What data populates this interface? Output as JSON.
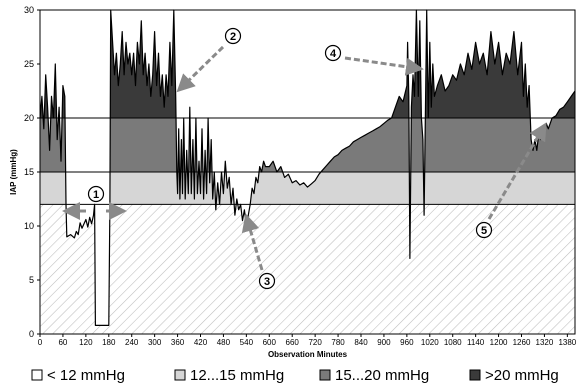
{
  "chart_data": {
    "type": "area",
    "title": "",
    "xlabel": "Observation Minutes",
    "ylabel": "IAP  (mmHg)",
    "xlim": [
      0,
      1400
    ],
    "ylim": [
      0,
      30
    ],
    "x_ticks": [
      "0",
      "60",
      "120",
      "180",
      "240",
      "300",
      "360",
      "420",
      "480",
      "540",
      "600",
      "660",
      "720",
      "780",
      "840",
      "900",
      "960",
      "1020",
      "1080",
      "1140",
      "1200",
      "1260",
      "1320",
      "1380"
    ],
    "y_ticks": [
      "0",
      "5",
      "10",
      "15",
      "20",
      "25",
      "30"
    ],
    "thresholds": [
      12,
      15,
      20
    ],
    "legend_position": "bottom",
    "legend": [
      {
        "label": "< 12 mmHg",
        "color": "#ffffff"
      },
      {
        "label": "12...15 mmHg",
        "color": "#d6d6d6"
      },
      {
        "label": "15...20 mmHg",
        "color": "#7a7a7a"
      },
      {
        "label": ">20 mmHg",
        "color": "#3a3a3a"
      }
    ],
    "band_colors": {
      "below_12": "#ffffff",
      "b12_15": "#d6d6d6",
      "b15_20": "#7a7a7a",
      "above_20": "#3a3a3a"
    },
    "series": [
      {
        "values_description_free": true,
        "points": [
          [
            0,
            20
          ],
          [
            5,
            22
          ],
          [
            10,
            19
          ],
          [
            15,
            24
          ],
          [
            20,
            21
          ],
          [
            25,
            17
          ],
          [
            30,
            22
          ],
          [
            35,
            20
          ],
          [
            40,
            25
          ],
          [
            45,
            18
          ],
          [
            50,
            21
          ],
          [
            55,
            16
          ],
          [
            60,
            23
          ],
          [
            65,
            22
          ],
          [
            68,
            12
          ],
          [
            70,
            9
          ],
          [
            80,
            9.2
          ],
          [
            90,
            8.9
          ],
          [
            95,
            9.5
          ],
          [
            100,
            9.2
          ],
          [
            105,
            10.3
          ],
          [
            110,
            9.8
          ],
          [
            120,
            10.6
          ],
          [
            125,
            9.9
          ],
          [
            130,
            10.8
          ],
          [
            135,
            10.2
          ],
          [
            140,
            11
          ],
          [
            143,
            12
          ],
          [
            145,
            0.8
          ],
          [
            180,
            0.8
          ],
          [
            183,
            12
          ],
          [
            185,
            30
          ],
          [
            190,
            27
          ],
          [
            195,
            24
          ],
          [
            200,
            26
          ],
          [
            205,
            23
          ],
          [
            210,
            25
          ],
          [
            215,
            28
          ],
          [
            220,
            24
          ],
          [
            225,
            27
          ],
          [
            230,
            25
          ],
          [
            235,
            26
          ],
          [
            240,
            24
          ],
          [
            245,
            26
          ],
          [
            250,
            23
          ],
          [
            255,
            27
          ],
          [
            260,
            25
          ],
          [
            265,
            29
          ],
          [
            270,
            24
          ],
          [
            275,
            26
          ],
          [
            280,
            23
          ],
          [
            285,
            25
          ],
          [
            290,
            22
          ],
          [
            295,
            24
          ],
          [
            300,
            28
          ],
          [
            305,
            23
          ],
          [
            310,
            26
          ],
          [
            315,
            22
          ],
          [
            320,
            24
          ],
          [
            325,
            21
          ],
          [
            330,
            24
          ],
          [
            335,
            22
          ],
          [
            340,
            27
          ],
          [
            345,
            23
          ],
          [
            350,
            30
          ],
          [
            355,
            22
          ],
          [
            358,
            15
          ],
          [
            360,
            13
          ],
          [
            363,
            19
          ],
          [
            366,
            12.5
          ],
          [
            370,
            18
          ],
          [
            373,
            13
          ],
          [
            376,
            20
          ],
          [
            380,
            12.5
          ],
          [
            384,
            17
          ],
          [
            388,
            13
          ],
          [
            392,
            21
          ],
          [
            396,
            13
          ],
          [
            400,
            18
          ],
          [
            404,
            12.5
          ],
          [
            408,
            20
          ],
          [
            412,
            13
          ],
          [
            416,
            16
          ],
          [
            420,
            13
          ],
          [
            424,
            19
          ],
          [
            428,
            12.5
          ],
          [
            432,
            17
          ],
          [
            436,
            13
          ],
          [
            440,
            20
          ],
          [
            444,
            14
          ],
          [
            448,
            18
          ],
          [
            452,
            12.5
          ],
          [
            456,
            15
          ],
          [
            460,
            11.5
          ],
          [
            465,
            14
          ],
          [
            470,
            12
          ],
          [
            475,
            15
          ],
          [
            480,
            13
          ],
          [
            485,
            16
          ],
          [
            490,
            13.5
          ],
          [
            495,
            14.5
          ],
          [
            500,
            12
          ],
          [
            505,
            13.5
          ],
          [
            510,
            11
          ],
          [
            515,
            12.5
          ],
          [
            520,
            11.5
          ],
          [
            525,
            12
          ],
          [
            530,
            10.5
          ],
          [
            535,
            11.5
          ],
          [
            540,
            10
          ],
          [
            545,
            11
          ],
          [
            550,
            12
          ],
          [
            555,
            13.5
          ],
          [
            560,
            13
          ],
          [
            565,
            14.5
          ],
          [
            570,
            14
          ],
          [
            575,
            15.5
          ],
          [
            580,
            15
          ],
          [
            585,
            16
          ],
          [
            590,
            15.5
          ],
          [
            600,
            15.5
          ],
          [
            610,
            16
          ],
          [
            620,
            15
          ],
          [
            630,
            15.5
          ],
          [
            640,
            14.5
          ],
          [
            650,
            14.8
          ],
          [
            660,
            14
          ],
          [
            670,
            14.2
          ],
          [
            680,
            13.8
          ],
          [
            690,
            14
          ],
          [
            700,
            13.6
          ],
          [
            710,
            13.9
          ],
          [
            720,
            14.2
          ],
          [
            730,
            14.8
          ],
          [
            740,
            15.2
          ],
          [
            750,
            15.6
          ],
          [
            760,
            16
          ],
          [
            770,
            16.4
          ],
          [
            780,
            16.6
          ],
          [
            790,
            17
          ],
          [
            800,
            17.2
          ],
          [
            810,
            17.4
          ],
          [
            820,
            17.8
          ],
          [
            830,
            18
          ],
          [
            840,
            18.2
          ],
          [
            850,
            18.4
          ],
          [
            860,
            18.6
          ],
          [
            870,
            18.8
          ],
          [
            880,
            19
          ],
          [
            890,
            19.2
          ],
          [
            900,
            19.5
          ],
          [
            910,
            19.8
          ],
          [
            920,
            20
          ],
          [
            930,
            21
          ],
          [
            940,
            22
          ],
          [
            950,
            21.5
          ],
          [
            960,
            23
          ],
          [
            962,
            27
          ],
          [
            965,
            22
          ],
          [
            968,
            7
          ],
          [
            972,
            21
          ],
          [
            976,
            24
          ],
          [
            980,
            22
          ],
          [
            985,
            30
          ],
          [
            990,
            22
          ],
          [
            994,
            29
          ],
          [
            998,
            20
          ],
          [
            1002,
            18
          ],
          [
            1005,
            11
          ],
          [
            1008,
            19
          ],
          [
            1012,
            30
          ],
          [
            1016,
            20
          ],
          [
            1020,
            27
          ],
          [
            1024,
            21
          ],
          [
            1028,
            25
          ],
          [
            1032,
            22
          ],
          [
            1040,
            23
          ],
          [
            1050,
            24
          ],
          [
            1060,
            22.5
          ],
          [
            1070,
            23
          ],
          [
            1080,
            24
          ],
          [
            1090,
            23.5
          ],
          [
            1100,
            25
          ],
          [
            1110,
            24
          ],
          [
            1120,
            26
          ],
          [
            1130,
            24.5
          ],
          [
            1140,
            27
          ],
          [
            1150,
            25
          ],
          [
            1160,
            26
          ],
          [
            1170,
            24
          ],
          [
            1180,
            28
          ],
          [
            1190,
            25
          ],
          [
            1200,
            27
          ],
          [
            1210,
            24
          ],
          [
            1220,
            26
          ],
          [
            1230,
            25
          ],
          [
            1240,
            28
          ],
          [
            1250,
            24
          ],
          [
            1260,
            27
          ],
          [
            1265,
            22
          ],
          [
            1270,
            25
          ],
          [
            1275,
            21
          ],
          [
            1280,
            23
          ],
          [
            1285,
            18
          ],
          [
            1290,
            17
          ],
          [
            1295,
            18
          ],
          [
            1300,
            17
          ],
          [
            1305,
            18.5
          ],
          [
            1310,
            18
          ],
          [
            1315,
            19
          ],
          [
            1320,
            18.5
          ],
          [
            1325,
            19.5
          ],
          [
            1330,
            19
          ],
          [
            1340,
            20
          ],
          [
            1350,
            20.2
          ],
          [
            1360,
            20.8
          ],
          [
            1370,
            21
          ],
          [
            1380,
            21.5
          ],
          [
            1390,
            22
          ],
          [
            1400,
            22.5
          ]
        ]
      }
    ],
    "annotations": [
      {
        "label": "1",
        "text": "①"
      },
      {
        "label": "2",
        "text": "②"
      },
      {
        "label": "3",
        "text": "③"
      },
      {
        "label": "4",
        "text": "④"
      },
      {
        "label": "5",
        "text": "⑤"
      }
    ]
  }
}
